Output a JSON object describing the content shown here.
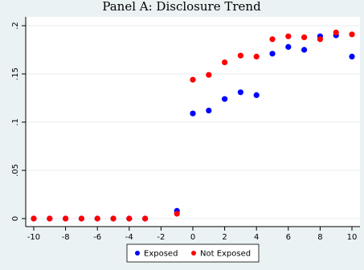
{
  "chart_data": {
    "type": "scatter",
    "title": "Panel A: Disclosure Trend",
    "xlabel": "",
    "ylabel": "",
    "xlim": [
      -10,
      10
    ],
    "ylim": [
      0,
      0.2
    ],
    "x_ticks": [
      -10,
      -8,
      -6,
      -4,
      -2,
      0,
      2,
      4,
      6,
      8,
      10
    ],
    "y_ticks": [
      0,
      0.05,
      0.1,
      0.15,
      0.2
    ],
    "y_tick_labels": [
      "0",
      ".05",
      ".1",
      ".15",
      ".2"
    ],
    "grid": "horizontal",
    "legend_position": "bottom",
    "series": [
      {
        "name": "Exposed",
        "color": "#0000ff",
        "x": [
          -10,
          -9,
          -8,
          -7,
          -6,
          -5,
          -4,
          -3,
          -1,
          0,
          1,
          2,
          3,
          4,
          5,
          6,
          7,
          8,
          9,
          10
        ],
        "y": [
          0,
          0,
          0,
          0,
          0,
          0,
          0,
          0,
          0.008,
          0.109,
          0.112,
          0.124,
          0.131,
          0.128,
          0.171,
          0.178,
          0.175,
          0.189,
          0.19,
          0.168
        ]
      },
      {
        "name": "Not Exposed",
        "color": "#ff0000",
        "x": [
          -10,
          -9,
          -8,
          -7,
          -6,
          -5,
          -4,
          -3,
          -1,
          0,
          1,
          2,
          3,
          4,
          5,
          6,
          7,
          8,
          9,
          10
        ],
        "y": [
          0,
          0,
          0,
          0,
          0,
          0,
          0,
          0,
          0.005,
          0.144,
          0.149,
          0.162,
          0.169,
          0.168,
          0.186,
          0.189,
          0.188,
          0.186,
          0.193,
          0.191
        ]
      }
    ]
  }
}
